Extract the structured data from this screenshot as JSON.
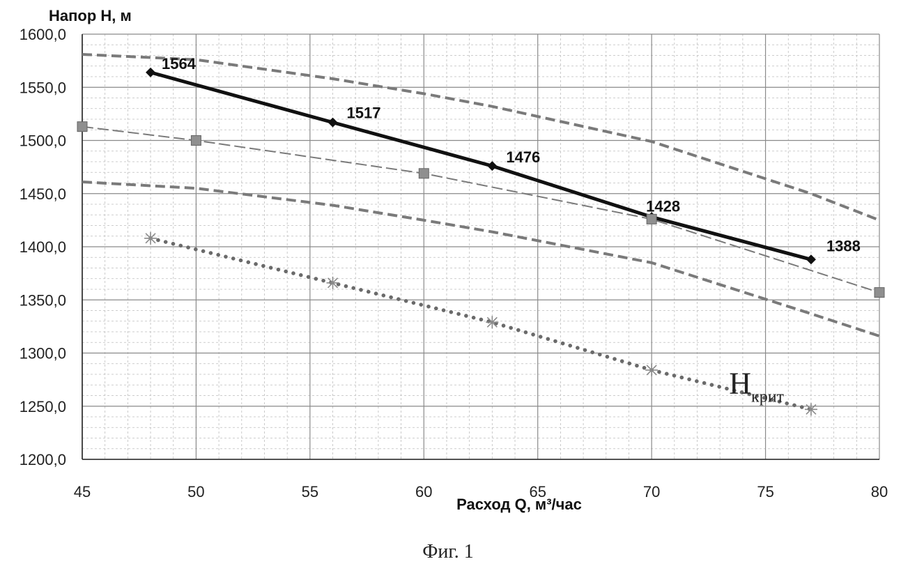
{
  "chart_data": {
    "type": "line",
    "xlabel": "Расход Q, м³/час",
    "ylabel": "Напор Н, м",
    "xlim": [
      45,
      80
    ],
    "ylim": [
      1200,
      1600
    ],
    "x_ticks": [
      "45",
      "50",
      "55",
      "60",
      "65",
      "70",
      "75",
      "80"
    ],
    "y_ticks": [
      "1200,0",
      "1250,0",
      "1300,0",
      "1350,0",
      "1400,0",
      "1450,0",
      "1500,0",
      "1550,0",
      "1600,0"
    ],
    "grid": true,
    "series": [
      {
        "style": "solid-thick",
        "color": "#111111",
        "marker": "diamond",
        "x": [
          48,
          56,
          63,
          70,
          77
        ],
        "y": [
          1564,
          1517,
          1476,
          1428,
          1388
        ],
        "labels": [
          "1564",
          "1517",
          "1476",
          "1428",
          "1388"
        ]
      },
      {
        "style": "dashed-thick",
        "color": "#7a7a7a",
        "marker": "none",
        "x": [
          45,
          50,
          56,
          60,
          63,
          70,
          77,
          80
        ],
        "y": [
          1581,
          1576,
          1558,
          1544,
          1532,
          1499,
          1450,
          1425
        ]
      },
      {
        "style": "dashed-thin",
        "color": "#7a7a7a",
        "marker": "square",
        "x": [
          45,
          50,
          60,
          70,
          80
        ],
        "y": [
          1513,
          1500,
          1469,
          1426,
          1357
        ]
      },
      {
        "style": "dashed-thick",
        "color": "#7a7a7a",
        "marker": "none",
        "x": [
          45,
          50,
          56,
          60,
          63,
          70,
          77,
          80
        ],
        "y": [
          1461,
          1455,
          1439,
          1425,
          1414,
          1385,
          1337,
          1316
        ]
      },
      {
        "style": "dotted-thick",
        "color": "#6a6a6a",
        "marker": "star",
        "x": [
          48,
          56,
          63,
          70,
          77
        ],
        "y": [
          1408,
          1366,
          1329,
          1284,
          1247
        ]
      }
    ],
    "annotation": {
      "main": "H",
      "sub": "крит",
      "x": 73.4,
      "y": 1262
    }
  },
  "caption": "Фиг. 1"
}
